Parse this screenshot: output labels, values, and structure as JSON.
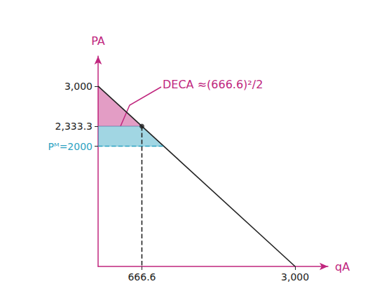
{
  "chart_data": {
    "type": "line",
    "x_label": "qA",
    "y_label": "PA",
    "xlim": [
      0,
      3500
    ],
    "ylim": [
      0,
      3500
    ],
    "xticks": [
      666.6,
      {
        "value": 3000,
        "label": "3,000"
      }
    ],
    "yticks": [
      {
        "value": 2000,
        "label": "Pᴹ=2000"
      },
      {
        "value": 2333.3,
        "label": "2,333.3"
      },
      {
        "value": 3000,
        "label": "3,000"
      }
    ],
    "annotations": [
      {
        "text": "DECA ≈(666.6)²/2",
        "color": "#c0267e"
      }
    ],
    "series": [
      {
        "type": "polygon",
        "color": "#c0267e",
        "x": [
          0,
          666.6,
          0
        ],
        "values": [
          3000,
          2333.3,
          2333.3
        ]
      },
      {
        "type": "polygon",
        "color": "#2ea3c2",
        "x": [
          0,
          666.6,
          1000,
          0
        ],
        "values": [
          2333.3,
          2333.3,
          2000,
          2000
        ]
      },
      {
        "type": "line",
        "color": "#222222",
        "x": [
          0,
          3000
        ],
        "values": [
          3000,
          0
        ]
      },
      {
        "type": "line",
        "line_style": "dashed",
        "color": "#2ea3c2",
        "x": [
          0,
          1000
        ],
        "values": [
          2000,
          2000
        ]
      },
      {
        "type": "line",
        "line_style": "dashed",
        "color": "#222222",
        "x": [
          666.6,
          666.6
        ],
        "values": [
          2333.3,
          0
        ]
      },
      {
        "type": "scatter",
        "color": "#222222",
        "x": [
          666.6
        ],
        "values": [
          2333.3
        ]
      }
    ]
  }
}
